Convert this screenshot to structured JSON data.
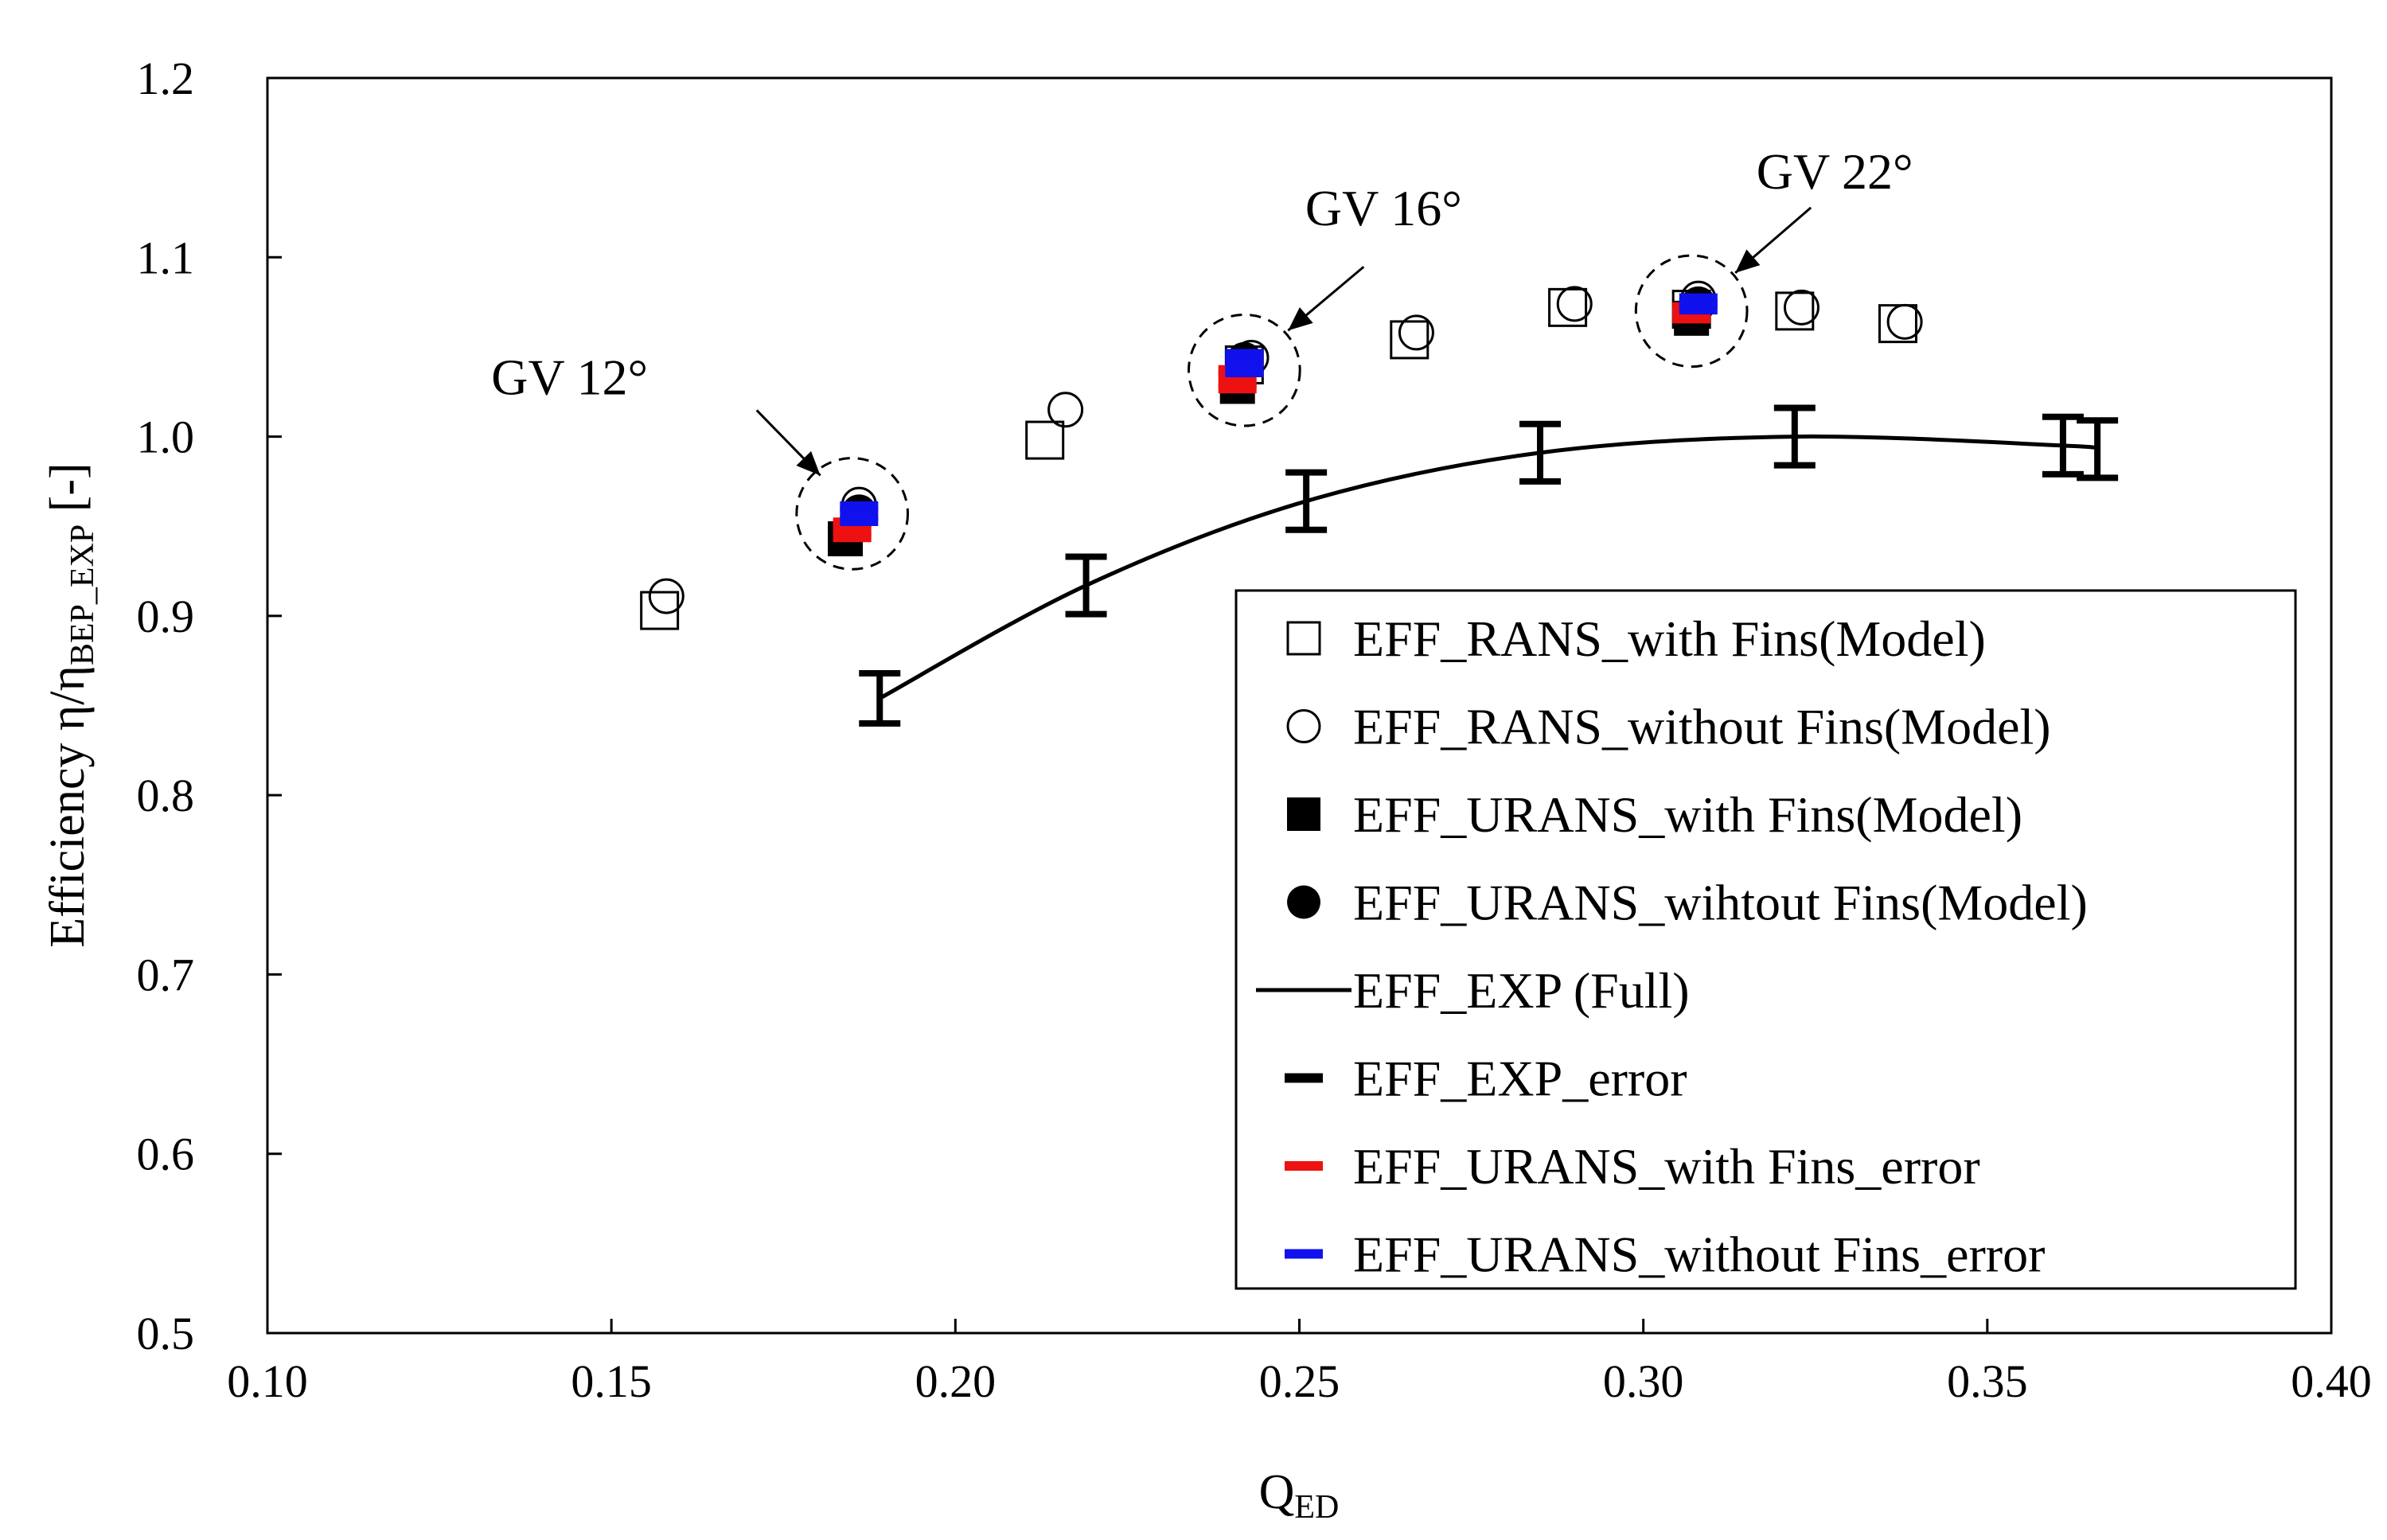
{
  "chart_data": {
    "type": "scatter",
    "title": "",
    "xlabel": {
      "main": "Q",
      "sub": "ED"
    },
    "ylabel": {
      "main": "Efficiency η/η",
      "sub": "BEP_EXP",
      "suffix": " [-]"
    },
    "xlim": [
      0.1,
      0.4
    ],
    "ylim": [
      0.5,
      1.2
    ],
    "xticks": [
      "0.10",
      "0.15",
      "0.20",
      "0.25",
      "0.30",
      "0.35",
      "0.40"
    ],
    "yticks": [
      "0.5",
      "0.6",
      "0.7",
      "0.8",
      "0.9",
      "1.0",
      "1.1",
      "1.2"
    ],
    "grid": false,
    "legend_position": "lower-right",
    "series": [
      {
        "name": "EFF_RANS_with Fins(Model)",
        "marker": "open-square",
        "color": "#000000",
        "x": [
          0.157,
          0.213,
          0.242,
          0.266,
          0.289,
          0.307,
          0.322,
          0.337
        ],
        "y": [
          0.903,
          0.998,
          1.04,
          1.054,
          1.072,
          1.071,
          1.07,
          1.063
        ]
      },
      {
        "name": "EFF_RANS_without Fins(Model)",
        "marker": "open-circle",
        "color": "#000000",
        "x": [
          0.158,
          0.216,
          0.186,
          0.243,
          0.267,
          0.29,
          0.308,
          0.323,
          0.338
        ],
        "y": [
          0.911,
          1.015,
          0.962,
          1.044,
          1.058,
          1.074,
          1.077,
          1.072,
          1.064
        ]
      },
      {
        "name": "EFF_URANS_with Fins(Model)",
        "marker": "filled-square",
        "color": "#000000",
        "x": [
          0.184,
          0.241,
          0.307
        ],
        "y": [
          0.943,
          1.028,
          1.066
        ]
      },
      {
        "name": "EFF_URANS_wihtout Fins(Model)",
        "marker": "filled-circle",
        "color": "#000000",
        "x": [
          0.186,
          0.242,
          0.308
        ],
        "y": [
          0.958,
          1.043,
          1.074
        ]
      },
      {
        "name": "EFF_EXP (Full)",
        "marker": "line",
        "color": "#000000",
        "x": [
          0.189,
          0.219,
          0.251,
          0.285,
          0.322,
          0.361,
          0.366
        ],
        "y": [
          0.854,
          0.917,
          0.964,
          0.991,
          1.0,
          0.995,
          0.993
        ]
      },
      {
        "name": "EFF_EXP_error",
        "marker": "errorbar",
        "color": "#000000",
        "x": [
          0.189,
          0.219,
          0.251,
          0.285,
          0.322,
          0.361,
          0.366
        ],
        "y": [
          0.854,
          0.917,
          0.964,
          0.991,
          1.0,
          0.995,
          0.993
        ],
        "err": [
          0.014,
          0.016,
          0.016,
          0.016,
          0.016,
          0.016,
          0.016
        ]
      },
      {
        "name": "EFF_URANS_with Fins_error",
        "marker": "dash",
        "color": "#ee1111",
        "x": [
          0.185,
          0.241,
          0.307
        ],
        "y": [
          0.948,
          1.032,
          1.069
        ],
        "err": [
          0.004,
          0.005,
          0.003
        ]
      },
      {
        "name": "EFF_URANS_without Fins_error",
        "marker": "dash",
        "color": "#1111ee",
        "x": [
          0.186,
          0.242,
          0.308
        ],
        "y": [
          0.957,
          1.041,
          1.074
        ],
        "err": [
          0.004,
          0.005,
          0.003
        ]
      }
    ],
    "annotations": [
      {
        "text": "GV 12°",
        "x": 0.185,
        "y": 0.957,
        "r": 0.031
      },
      {
        "text": "GV 16°",
        "x": 0.242,
        "y": 1.037,
        "r": 0.031
      },
      {
        "text": "GV 22°",
        "x": 0.307,
        "y": 1.07,
        "r": 0.031
      }
    ]
  }
}
